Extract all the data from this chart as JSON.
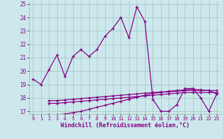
{
  "xlabel": "Windchill (Refroidissement éolien,°C)",
  "background_color": "#cce8ec",
  "grid_color": "#aacccc",
  "line_color": "#880088",
  "xlim": [
    -0.5,
    23.5
  ],
  "ylim": [
    16.8,
    25.2
  ],
  "yticks": [
    17,
    18,
    19,
    20,
    21,
    22,
    23,
    24,
    25
  ],
  "xticks": [
    0,
    1,
    2,
    3,
    4,
    5,
    6,
    7,
    8,
    9,
    10,
    11,
    12,
    13,
    14,
    15,
    16,
    17,
    18,
    19,
    20,
    21,
    22,
    23
  ],
  "main_x": [
    0,
    1,
    2,
    3,
    4,
    5,
    6,
    7,
    8,
    9,
    10,
    11,
    12,
    13,
    14,
    15,
    16,
    17,
    18,
    19,
    20,
    21,
    22,
    23
  ],
  "main_y": [
    19.4,
    19.0,
    20.1,
    21.2,
    19.6,
    21.1,
    21.6,
    21.1,
    21.6,
    22.6,
    23.2,
    24.0,
    22.5,
    24.8,
    23.7,
    17.9,
    17.0,
    17.0,
    17.5,
    18.7,
    18.7,
    18.0,
    17.0,
    18.3
  ],
  "line2_x": [
    2,
    3,
    4,
    5,
    6,
    7,
    8,
    9,
    10,
    11,
    12,
    13,
    14,
    15,
    16,
    17,
    18,
    19,
    20,
    21,
    22,
    23
  ],
  "line2_y": [
    17.8,
    17.8,
    17.85,
    17.9,
    17.95,
    18.0,
    18.05,
    18.1,
    18.15,
    18.2,
    18.25,
    18.3,
    18.35,
    18.4,
    18.45,
    18.45,
    18.5,
    18.55,
    18.55,
    18.55,
    18.55,
    18.55
  ],
  "line3_x": [
    2,
    3,
    4,
    5,
    6,
    7,
    8,
    9,
    10,
    11,
    12,
    13,
    14,
    15,
    16,
    17,
    18,
    19,
    20,
    21,
    22,
    23
  ],
  "line3_y": [
    17.6,
    17.6,
    17.65,
    17.7,
    17.75,
    17.8,
    17.85,
    17.9,
    17.95,
    18.0,
    18.05,
    18.1,
    18.15,
    18.2,
    18.25,
    18.3,
    18.35,
    18.4,
    18.4,
    18.4,
    18.4,
    18.4
  ],
  "line4_x": [
    2,
    3,
    4,
    5,
    6,
    7,
    8,
    9,
    10,
    11,
    12,
    13,
    14,
    15,
    16,
    17,
    18,
    19,
    20,
    21,
    22,
    23
  ],
  "line4_y": [
    16.75,
    16.75,
    16.8,
    16.9,
    17.0,
    17.15,
    17.3,
    17.45,
    17.6,
    17.75,
    17.9,
    18.05,
    18.2,
    18.35,
    18.4,
    18.5,
    18.55,
    18.6,
    18.65,
    18.6,
    18.55,
    18.3
  ]
}
